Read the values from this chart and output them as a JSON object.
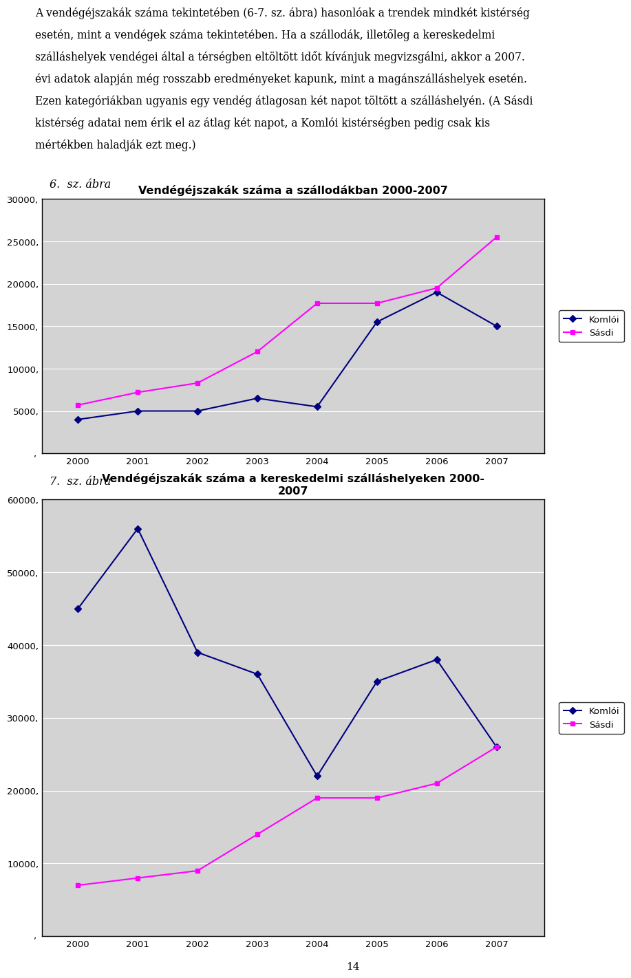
{
  "text_line1": "A vendégéjszakák száma tekintetében (6-7. sz. ábra) hasonlóak a trendek mindkét kistérség",
  "text_line2": "esetén, mint a vendégek száma tekintetében. Ha a szállodák, illetőleg a kereskedelmi",
  "text_line3": "szálláshelyek vendégei által a térségben eltöltött időt kívánjuk megvizsgálni, akkor a 2007.",
  "text_line4": "évi adatok alapján még rosszabb eredményeket kapunk, mint a magánszálláshelyek esetén.",
  "text_line5": "Ezen kategóriákban ugyanis egy vendég átlagosan két napot töltött a szálláshelyén. (A Sásdi",
  "text_line6": "kistérség adatai nem érik el az átlag két napot, a Komlói kistérségben pedig csak kis",
  "text_line7": "mértékben haladják ezt meg.)",
  "label_fig1": "6.  sz. ábra",
  "title1": "Vendégéjszakák száma a szállodákban 2000-2007",
  "years": [
    2000,
    2001,
    2002,
    2003,
    2004,
    2005,
    2006,
    2007
  ],
  "fig1_komloi": [
    4000,
    5000,
    5000,
    6500,
    5500,
    15500,
    19000,
    15000
  ],
  "fig1_sasdi": [
    5700,
    7200,
    8300,
    12000,
    17700,
    17700,
    19500,
    25500
  ],
  "fig1_ylim": [
    0,
    30000
  ],
  "fig1_yticks": [
    5000,
    10000,
    15000,
    20000,
    25000,
    30000
  ],
  "fig1_ytick_labels": [
    "5000,",
    "10000,",
    "15000,",
    "20000,",
    "25000,",
    "30000,"
  ],
  "label_fig2": "7.  sz. ábra",
  "title2": "Vendégéjszakák száma a kereskedelmi szálláshelyeken 2000-\n2007",
  "fig2_komloi": [
    45000,
    56000,
    39000,
    36000,
    22000,
    35000,
    38000,
    26000
  ],
  "fig2_sasdi": [
    7000,
    8000,
    9000,
    14000,
    19000,
    19000,
    21000,
    26000
  ],
  "fig2_ylim": [
    0,
    60000
  ],
  "fig2_yticks": [
    10000,
    20000,
    30000,
    40000,
    50000,
    60000
  ],
  "fig2_ytick_labels": [
    "10000,",
    "20000,",
    "30000,",
    "40000,",
    "50000,",
    "60000,"
  ],
  "color_komloi": "#000080",
  "color_sasdi": "#FF00FF",
  "bg_color": "#ffffff",
  "plot_bg": "#D3D3D3",
  "page_number": "14",
  "chart_border_color": "#000000"
}
